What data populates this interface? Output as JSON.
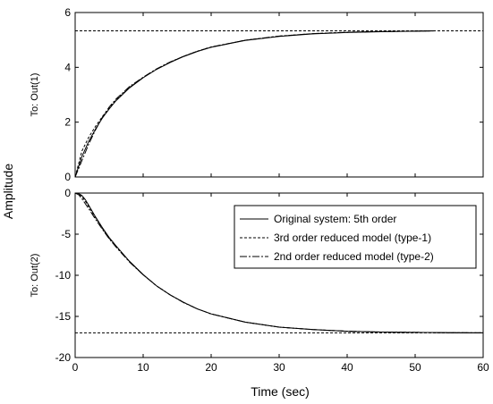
{
  "chart_data": {
    "type": "line",
    "xlabel": "Time (sec)",
    "ylabel": "Amplitude",
    "xlim": [
      0,
      60
    ],
    "xticks": [
      "0",
      "10",
      "20",
      "30",
      "40",
      "50",
      "60"
    ],
    "legend": {
      "placement": "top-right of lower panel",
      "entries": [
        "Original system: 5th order",
        "3rd order reduced model (type-1)",
        "2nd order reduced model (type-2)"
      ]
    },
    "panels": [
      {
        "ylabel": "To: Out(1)",
        "ylim": [
          0,
          6
        ],
        "yticks": [
          "0",
          "2",
          "4",
          "6"
        ],
        "steady_state": 5.33,
        "series": [
          {
            "name": "Original system: 5th order",
            "style": "solid",
            "x": [
              0,
              1,
              2,
              3,
              4,
              5,
              6,
              8,
              10,
              12,
              14,
              16,
              18,
              20,
              25,
              30,
              35,
              40,
              45,
              50,
              53
            ],
            "y": [
              0,
              0.75,
              1.3,
              1.75,
              2.15,
              2.48,
              2.78,
              3.25,
              3.62,
              3.93,
              4.18,
              4.4,
              4.58,
              4.73,
              4.98,
              5.13,
              5.22,
              5.27,
              5.3,
              5.32,
              5.33
            ]
          },
          {
            "name": "3rd order reduced model (type-1)",
            "style": "dashed",
            "x": [
              0,
              1,
              2,
              3,
              4,
              5,
              6,
              8,
              10,
              12,
              14,
              16,
              18,
              20,
              25,
              30,
              35,
              40,
              45,
              50,
              53
            ],
            "y": [
              0,
              0.95,
              1.45,
              1.85,
              2.2,
              2.52,
              2.8,
              3.27,
              3.63,
              3.94,
              4.19,
              4.41,
              4.59,
              4.74,
              4.99,
              5.14,
              5.23,
              5.28,
              5.31,
              5.32,
              5.33
            ]
          },
          {
            "name": "2nd order reduced model (type-2)",
            "style": "solid",
            "x": [
              0,
              1,
              2,
              3,
              4,
              5,
              6,
              8,
              10,
              12,
              14,
              16,
              18,
              20,
              25,
              30,
              35,
              40,
              45,
              50,
              53
            ],
            "y": [
              0,
              0.6,
              1.2,
              1.72,
              2.18,
              2.55,
              2.84,
              3.3,
              3.64,
              3.95,
              4.2,
              4.41,
              4.59,
              4.74,
              4.99,
              5.14,
              5.23,
              5.28,
              5.31,
              5.32,
              5.33
            ]
          }
        ]
      },
      {
        "ylabel": "To: Out(2)",
        "ylim": [
          -20,
          0
        ],
        "yticks": [
          "0",
          "-5",
          "-10",
          "-15",
          "-20"
        ],
        "steady_state": -17,
        "series": [
          {
            "name": "Original system: 5th order",
            "style": "solid",
            "x": [
              0,
              0.5,
              1,
              1.5,
              2,
              3,
              4,
              5,
              6,
              8,
              10,
              12,
              14,
              16,
              18,
              20,
              25,
              30,
              35,
              40,
              45,
              50,
              55,
              60
            ],
            "y": [
              0,
              -0.05,
              -0.3,
              -0.8,
              -1.5,
              -2.9,
              -4.2,
              -5.4,
              -6.4,
              -8.3,
              -9.9,
              -11.3,
              -12.4,
              -13.3,
              -14.1,
              -14.7,
              -15.7,
              -16.3,
              -16.6,
              -16.8,
              -16.9,
              -16.95,
              -16.98,
              -17.0
            ]
          },
          {
            "name": "3rd order reduced model (type-1)",
            "style": "dashed",
            "x": [
              0,
              0.5,
              1,
              1.5,
              2,
              3,
              4,
              5,
              6,
              8,
              10,
              12,
              14,
              16,
              18,
              20,
              25,
              30,
              35,
              40,
              45,
              50,
              55,
              60
            ],
            "y": [
              0,
              -0.1,
              -0.45,
              -1.0,
              -1.65,
              -3.0,
              -4.3,
              -5.5,
              -6.5,
              -8.35,
              -9.95,
              -11.3,
              -12.4,
              -13.3,
              -14.1,
              -14.7,
              -15.7,
              -16.3,
              -16.6,
              -16.8,
              -16.9,
              -16.95,
              -16.98,
              -17.0
            ]
          },
          {
            "name": "2nd order reduced model (type-2)",
            "style": "solid",
            "x": [
              0,
              0.5,
              1,
              1.5,
              2,
              3,
              4,
              5,
              6,
              8,
              10,
              12,
              14,
              16,
              18,
              20,
              25,
              30,
              35,
              40,
              45,
              50,
              55,
              60
            ],
            "y": [
              0,
              -0.2,
              -0.7,
              -1.3,
              -1.9,
              -3.2,
              -4.4,
              -5.55,
              -6.55,
              -8.4,
              -9.95,
              -11.3,
              -12.4,
              -13.35,
              -14.1,
              -14.7,
              -15.7,
              -16.3,
              -16.6,
              -16.8,
              -16.9,
              -16.95,
              -16.98,
              -17.0
            ]
          }
        ]
      }
    ]
  }
}
